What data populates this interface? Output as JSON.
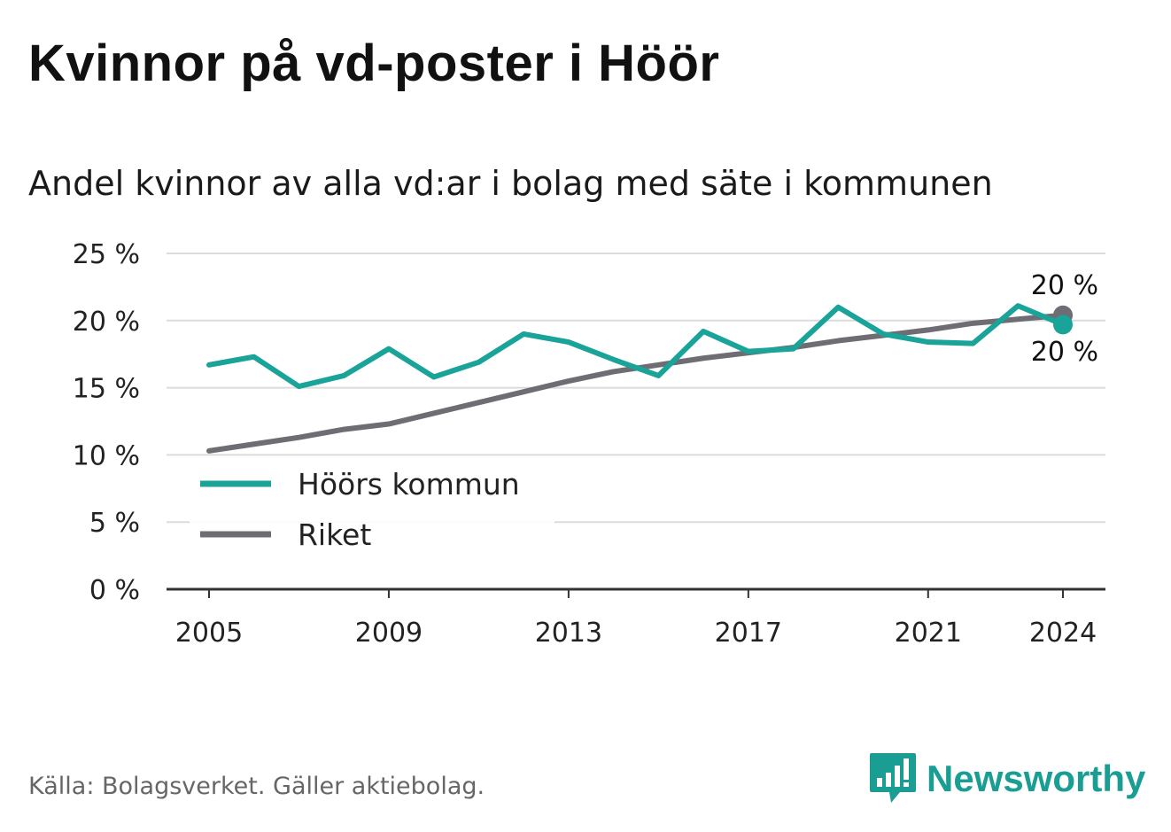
{
  "title": "Kvinnor på vd-poster i Höör",
  "subtitle": "Andel kvinnor av alla vd:ar i bolag med säte i kommunen",
  "source": "Källa: Bolagsverket. Gäller aktiebolag.",
  "brand": {
    "name": "Newsworthy",
    "icon": "bar-chart-speech-bubble-icon",
    "color": "#1a9e93"
  },
  "chart_data": {
    "type": "line",
    "x": [
      2005,
      2006,
      2007,
      2008,
      2009,
      2010,
      2011,
      2012,
      2013,
      2014,
      2015,
      2016,
      2017,
      2018,
      2019,
      2020,
      2021,
      2022,
      2023,
      2024
    ],
    "x_ticks": [
      "2005",
      "2009",
      "2013",
      "2017",
      "2021",
      "2024"
    ],
    "y_ticks": [
      "0 %",
      "5 %",
      "10 %",
      "15 %",
      "20 %",
      "25 %"
    ],
    "ylim": [
      0,
      25
    ],
    "grid": true,
    "legend_position": "lower-left",
    "series": [
      {
        "name": "Höörs kommun",
        "color": "#1aa398",
        "values": [
          16.7,
          17.3,
          15.1,
          15.9,
          17.9,
          15.8,
          16.9,
          19.0,
          18.4,
          17.1,
          15.9,
          19.2,
          17.7,
          17.9,
          21.0,
          19.0,
          18.4,
          18.3,
          21.1,
          19.7
        ],
        "end_label": "20 %"
      },
      {
        "name": "Riket",
        "color": "#6e6d74",
        "values": [
          10.3,
          10.8,
          11.3,
          11.9,
          12.3,
          13.1,
          13.9,
          14.7,
          15.5,
          16.2,
          16.7,
          17.2,
          17.6,
          18.0,
          18.5,
          18.9,
          19.3,
          19.8,
          20.1,
          20.4
        ],
        "end_label": "20 %"
      }
    ]
  }
}
